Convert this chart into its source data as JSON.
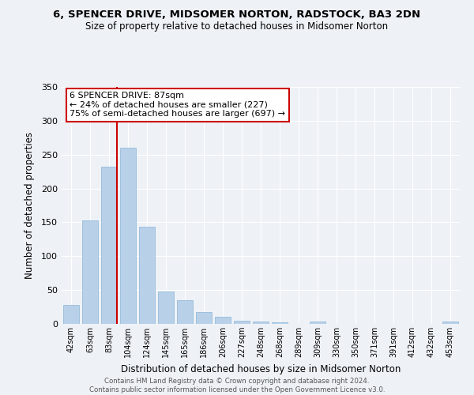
{
  "title1": "6, SPENCER DRIVE, MIDSOMER NORTON, RADSTOCK, BA3 2DN",
  "title2": "Size of property relative to detached houses in Midsomer Norton",
  "xlabel": "Distribution of detached houses by size in Midsomer Norton",
  "ylabel": "Number of detached properties",
  "footer1": "Contains HM Land Registry data © Crown copyright and database right 2024.",
  "footer2": "Contains public sector information licensed under the Open Government Licence v3.0.",
  "bar_labels": [
    "42sqm",
    "63sqm",
    "83sqm",
    "104sqm",
    "124sqm",
    "145sqm",
    "165sqm",
    "186sqm",
    "206sqm",
    "227sqm",
    "248sqm",
    "268sqm",
    "289sqm",
    "309sqm",
    "330sqm",
    "350sqm",
    "371sqm",
    "391sqm",
    "412sqm",
    "432sqm",
    "453sqm"
  ],
  "bar_values": [
    28,
    153,
    232,
    260,
    143,
    48,
    35,
    18,
    11,
    5,
    4,
    2,
    0,
    4,
    0,
    0,
    0,
    0,
    0,
    0,
    3
  ],
  "bar_color": "#b8d0e8",
  "bar_edge_color": "#8ab4d4",
  "vline_color": "#cc0000",
  "vline_x": 2.425,
  "annotation_title": "6 SPENCER DRIVE: 87sqm",
  "annotation_line1": "← 24% of detached houses are smaller (227)",
  "annotation_line2": "75% of semi-detached houses are larger (697) →",
  "annotation_box_color": "#ffffff",
  "annotation_box_edge": "#cc0000",
  "ylim": [
    0,
    350
  ],
  "yticks": [
    0,
    50,
    100,
    150,
    200,
    250,
    300,
    350
  ],
  "bg_color": "#eef2f7"
}
